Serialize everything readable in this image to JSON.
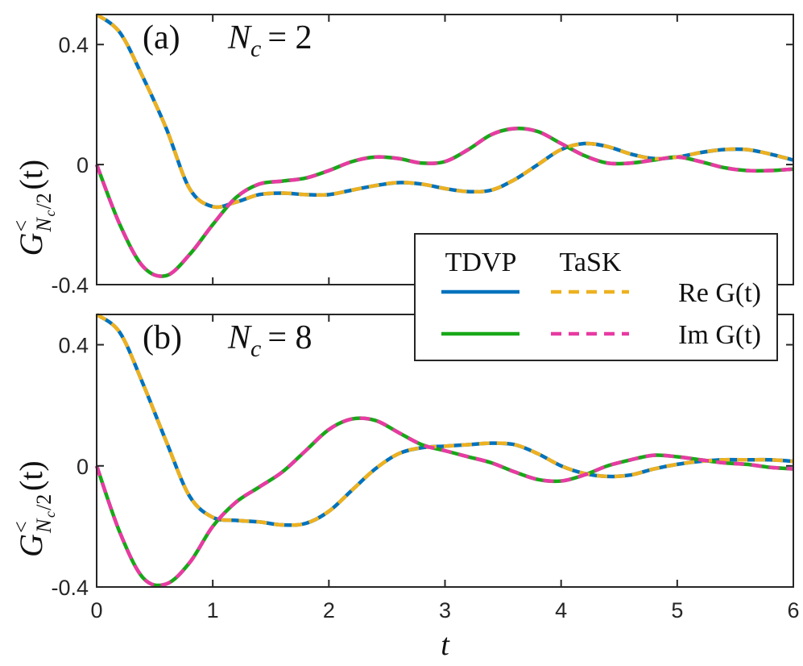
{
  "chart_data": [
    {
      "type": "line",
      "panel_label": {
        "tag": "(a)",
        "symbol": "N",
        "subscript": "c",
        "equals": "= 2"
      },
      "ylabel": {
        "base": "G",
        "sup": "<",
        "sub": "N",
        "subsub": "c",
        "subrest": "/2",
        "arg": "(t)"
      },
      "x": [
        0,
        0.2,
        0.4,
        0.6,
        0.8,
        1,
        1.2,
        1.4,
        1.6,
        1.8,
        2,
        2.2,
        2.4,
        2.6,
        2.8,
        3,
        3.2,
        3.4,
        3.6,
        3.8,
        4,
        4.2,
        4.4,
        4.6,
        4.8,
        5,
        5.2,
        5.4,
        5.6,
        5.8,
        6
      ],
      "xlim": [
        0,
        6
      ],
      "xticks": [
        0,
        1,
        2,
        3,
        4,
        5,
        6
      ],
      "show_xticklabels": false,
      "ylim": [
        -0.4,
        0.5
      ],
      "yticks": [
        -0.4,
        0,
        0.4
      ],
      "series": [
        {
          "color": "#0072bd",
          "dashed": false,
          "values": [
            0.5,
            0.44,
            0.29,
            0.12,
            -0.08,
            -0.14,
            -0.125,
            -0.1,
            -0.095,
            -0.1,
            -0.1,
            -0.085,
            -0.07,
            -0.06,
            -0.065,
            -0.08,
            -0.09,
            -0.085,
            -0.05,
            0.0,
            0.05,
            0.07,
            0.06,
            0.035,
            0.02,
            0.025,
            0.04,
            0.05,
            0.05,
            0.035,
            0.015
          ]
        },
        {
          "color": "#17a817",
          "dashed": false,
          "values": [
            0,
            -0.2,
            -0.34,
            -0.37,
            -0.3,
            -0.2,
            -0.11,
            -0.065,
            -0.055,
            -0.045,
            -0.02,
            0.01,
            0.025,
            0.02,
            0.005,
            0.01,
            0.05,
            0.1,
            0.12,
            0.11,
            0.07,
            0.03,
            0.005,
            0.005,
            0.015,
            0.025,
            0.01,
            -0.01,
            -0.02,
            -0.02,
            -0.015
          ]
        },
        {
          "color": "#edb120",
          "dashed": true,
          "values": [
            0.5,
            0.44,
            0.29,
            0.12,
            -0.08,
            -0.14,
            -0.125,
            -0.1,
            -0.095,
            -0.1,
            -0.1,
            -0.085,
            -0.07,
            -0.06,
            -0.065,
            -0.08,
            -0.09,
            -0.085,
            -0.05,
            0.0,
            0.05,
            0.07,
            0.06,
            0.035,
            0.02,
            0.025,
            0.04,
            0.05,
            0.05,
            0.035,
            0.015
          ]
        },
        {
          "color": "#e83aa3",
          "dashed": true,
          "values": [
            0,
            -0.2,
            -0.34,
            -0.37,
            -0.3,
            -0.2,
            -0.11,
            -0.065,
            -0.055,
            -0.045,
            -0.02,
            0.01,
            0.025,
            0.02,
            0.005,
            0.01,
            0.05,
            0.1,
            0.12,
            0.11,
            0.07,
            0.03,
            0.005,
            0.005,
            0.015,
            0.025,
            0.01,
            -0.01,
            -0.02,
            -0.02,
            -0.015
          ]
        }
      ],
      "legend": {
        "columns": [
          "TDVP",
          "TaSK"
        ],
        "rows": [
          "Re G(t)",
          "Im G(t)"
        ]
      }
    },
    {
      "type": "line",
      "panel_label": {
        "tag": "(b)",
        "symbol": "N",
        "subscript": "c",
        "equals": "= 8"
      },
      "ylabel": {
        "base": "G",
        "sup": "<",
        "sub": "N",
        "subsub": "c",
        "subrest": "/2",
        "arg": "(t)"
      },
      "xlabel": "t",
      "x": [
        0,
        0.2,
        0.4,
        0.6,
        0.8,
        1,
        1.2,
        1.4,
        1.6,
        1.8,
        2,
        2.2,
        2.4,
        2.6,
        2.8,
        3,
        3.2,
        3.4,
        3.6,
        3.8,
        4,
        4.2,
        4.4,
        4.6,
        4.8,
        5,
        5.2,
        5.4,
        5.6,
        5.8,
        6
      ],
      "xlim": [
        0,
        6
      ],
      "xticks": [
        0,
        1,
        2,
        3,
        4,
        5,
        6
      ],
      "show_xticklabels": true,
      "ylim": [
        -0.4,
        0.5
      ],
      "yticks": [
        -0.4,
        0,
        0.4
      ],
      "series": [
        {
          "color": "#0072bd",
          "dashed": false,
          "values": [
            0.5,
            0.44,
            0.27,
            0.08,
            -0.1,
            -0.17,
            -0.18,
            -0.185,
            -0.195,
            -0.19,
            -0.15,
            -0.08,
            -0.01,
            0.04,
            0.06,
            0.065,
            0.07,
            0.075,
            0.07,
            0.04,
            0.0,
            -0.025,
            -0.035,
            -0.03,
            -0.01,
            0.005,
            0.015,
            0.02,
            0.02,
            0.02,
            0.015
          ]
        },
        {
          "color": "#17a817",
          "dashed": false,
          "values": [
            0,
            -0.22,
            -0.37,
            -0.39,
            -0.32,
            -0.2,
            -0.12,
            -0.07,
            -0.02,
            0.05,
            0.12,
            0.155,
            0.15,
            0.11,
            0.07,
            0.05,
            0.03,
            0.01,
            -0.02,
            -0.045,
            -0.05,
            -0.03,
            0.0,
            0.02,
            0.035,
            0.03,
            0.02,
            0.01,
            0.005,
            -0.005,
            -0.01
          ]
        },
        {
          "color": "#edb120",
          "dashed": true,
          "values": [
            0.5,
            0.44,
            0.27,
            0.08,
            -0.1,
            -0.17,
            -0.18,
            -0.185,
            -0.195,
            -0.19,
            -0.15,
            -0.08,
            -0.01,
            0.04,
            0.06,
            0.065,
            0.07,
            0.075,
            0.07,
            0.04,
            0.0,
            -0.025,
            -0.035,
            -0.03,
            -0.01,
            0.005,
            0.015,
            0.02,
            0.02,
            0.02,
            0.015
          ]
        },
        {
          "color": "#e83aa3",
          "dashed": true,
          "values": [
            0,
            -0.22,
            -0.37,
            -0.39,
            -0.32,
            -0.2,
            -0.12,
            -0.07,
            -0.02,
            0.05,
            0.12,
            0.155,
            0.15,
            0.11,
            0.07,
            0.05,
            0.03,
            0.01,
            -0.02,
            -0.045,
            -0.05,
            -0.03,
            0.0,
            0.02,
            0.035,
            0.03,
            0.02,
            0.01,
            0.005,
            -0.005,
            -0.01
          ]
        }
      ]
    }
  ]
}
